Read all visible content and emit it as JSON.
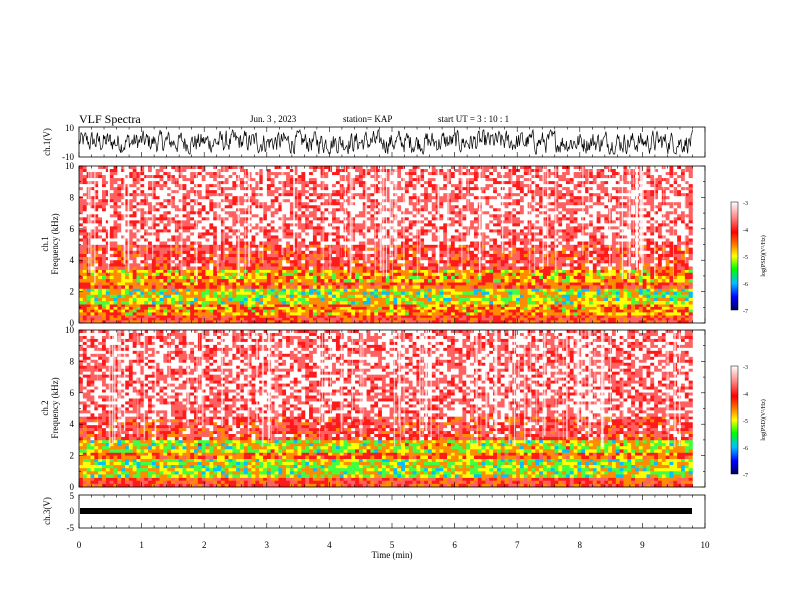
{
  "header": {
    "title": "VLF Spectra",
    "date": "Jun. 3 , 2023",
    "station": "station= KAP",
    "start": "start UT = 3 : 10 : 1"
  },
  "panels": {
    "ch1_waveform": {
      "ylabel": "ch.1(V)",
      "yticks": [
        "10",
        "-10"
      ]
    },
    "ch1_spectrogram": {
      "ylabel_line1": "ch.1",
      "ylabel_line2": "Frequency (kHz)",
      "yticks": [
        "10",
        "8",
        "6",
        "4",
        "2",
        "0"
      ]
    },
    "ch2_spectrogram": {
      "ylabel_line1": "ch.2",
      "ylabel_line2": "Frequency (kHz)",
      "yticks": [
        "10",
        "8",
        "6",
        "4",
        "2",
        "0"
      ]
    },
    "ch3_waveform": {
      "ylabel": "ch.3(V)",
      "yticks": [
        "5",
        "0",
        "-5"
      ]
    }
  },
  "colorbars": [
    {
      "label": "log(PSD)(V²/Hz)",
      "ticks": [
        "-3",
        "-4",
        "-5",
        "-6",
        "-7"
      ]
    },
    {
      "label": "log(PSD)(V²/Hz)",
      "ticks": [
        "-3",
        "-4",
        "-5",
        "-6",
        "-7"
      ]
    }
  ],
  "xaxis": {
    "label": "Time (min)",
    "ticks": [
      "0",
      "1",
      "2",
      "3",
      "4",
      "5",
      "6",
      "7",
      "8",
      "9",
      "10"
    ]
  },
  "colors": {
    "red": "#ff2020",
    "yellow": "#ffff00",
    "green": "#00ff00",
    "blue": "#0000ff",
    "dark_blue": "#000080",
    "trace": "#000000"
  },
  "chart_data": [
    {
      "type": "line",
      "title": "ch.1(V)",
      "xlabel": "Time (min)",
      "ylabel": "ch.1(V)",
      "xlim": [
        0,
        10
      ],
      "ylim": [
        -10,
        10
      ],
      "series": [
        {
          "description_range": [
            -8,
            8
          ],
          "values_summary": "broadband noise waveform, amplitude roughly ±8 V",
          "x_end": 9.8
        }
      ]
    },
    {
      "type": "heatmap",
      "ylabel": "Frequency (kHz)",
      "xlabel": "Time (min)",
      "xlim": [
        0,
        10
      ],
      "ylim": [
        0,
        10
      ],
      "colorbar_range": [
        -7,
        -3
      ],
      "bands": [
        {
          "freq_khz": [
            0,
            0.5
          ],
          "level": -4.0
        },
        {
          "freq_khz": [
            0.5,
            1.2
          ],
          "level": -4.5
        },
        {
          "freq_khz": [
            1.2,
            2.2
          ],
          "level": -5.0
        },
        {
          "freq_khz": [
            2.2,
            2.6
          ],
          "level": -4.2
        },
        {
          "freq_khz": [
            2.6,
            3.4
          ],
          "level": -4.6
        },
        {
          "freq_khz": [
            3.4,
            5.0
          ],
          "level": -3.8
        },
        {
          "freq_khz": [
            5.0,
            10.0
          ],
          "level": -3.4
        }
      ]
    },
    {
      "type": "heatmap",
      "ylabel": "Frequency (kHz)",
      "xlabel": "Time (min)",
      "xlim": [
        0,
        10
      ],
      "ylim": [
        0,
        10
      ],
      "colorbar_range": [
        -7,
        -3
      ],
      "bands": [
        {
          "freq_khz": [
            0,
            0.6
          ],
          "level": -4.0
        },
        {
          "freq_khz": [
            0.6,
            1.8
          ],
          "level": -5.0
        },
        {
          "freq_khz": [
            1.8,
            2.2
          ],
          "level": -4.3
        },
        {
          "freq_khz": [
            2.2,
            3.0
          ],
          "level": -4.9
        },
        {
          "freq_khz": [
            3.0,
            4.5
          ],
          "level": -3.8
        },
        {
          "freq_khz": [
            4.5,
            10.0
          ],
          "level": -3.4
        }
      ]
    },
    {
      "type": "line",
      "xlabel": "Time (min)",
      "ylabel": "ch.3(V)",
      "xlim": [
        0,
        10
      ],
      "ylim": [
        -5,
        5
      ],
      "series": [
        {
          "values_summary": "flat trace near 0 V",
          "level": 0,
          "x_end": 9.8
        }
      ]
    }
  ]
}
